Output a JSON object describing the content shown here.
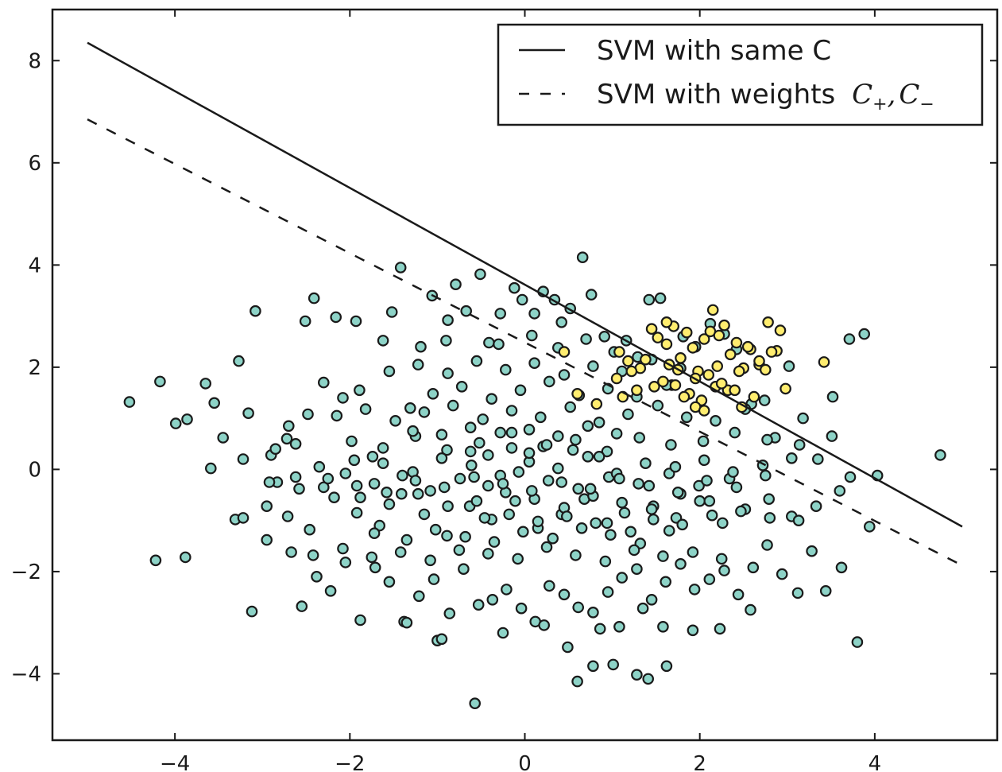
{
  "chart_data": {
    "type": "scatter",
    "title": "",
    "xlabel": "",
    "ylabel": "",
    "xlim": [
      -5.4,
      5.4
    ],
    "ylim": [
      -5.3,
      9.0
    ],
    "xticks": [
      -4,
      -2,
      0,
      2,
      4
    ],
    "yticks": [
      -4,
      -2,
      0,
      2,
      4,
      6,
      8
    ],
    "xtick_labels": [
      "−4",
      "−2",
      "0",
      "2",
      "4"
    ],
    "ytick_labels": [
      "−4",
      "−2",
      "0",
      "2",
      "4",
      "6",
      "8"
    ],
    "grid": false,
    "legend_position": "top-right",
    "colors": {
      "majority": "#8dd3c7",
      "minority": "#ffed6f",
      "marker_edge": "#1a1a1a",
      "line": "#1a1a1a"
    },
    "lines": [
      {
        "name": "SVM with same C",
        "style": "solid",
        "x": [
          -5.0,
          5.0
        ],
        "y": [
          8.35,
          -1.12
        ]
      },
      {
        "name": "SVM with weights",
        "math_name": "C+, C−",
        "style": "dashed",
        "x": [
          -5.0,
          5.0
        ],
        "y": [
          6.85,
          -1.88
        ]
      }
    ],
    "legend_math": {
      "c": "C",
      "plus": "+",
      "comma": ",",
      "minus": "−"
    },
    "series": [
      {
        "name": "",
        "color": "#8dd3c7",
        "x": [
          -4.52,
          -4.17,
          -3.86,
          -3.99,
          -3.65,
          -3.55,
          -3.45,
          -3.27,
          -3.22,
          -3.16,
          -3.08,
          -2.9,
          -2.85,
          -2.72,
          -2.62,
          -2.51,
          -2.48,
          -2.41,
          -2.3,
          -2.16,
          -2.08,
          -1.93,
          -1.89,
          -1.74,
          -1.62,
          -1.52,
          -1.42,
          -1.31,
          -1.19,
          -1.06,
          -0.88,
          -0.79,
          -0.67,
          -0.51,
          -0.41,
          -0.28,
          -0.12,
          -0.03,
          0.11,
          0.21,
          0.34,
          0.42,
          0.52,
          0.66,
          0.76,
          0.91,
          1.02,
          1.16,
          1.29,
          1.42,
          1.55,
          1.68,
          1.81,
          1.95,
          2.12,
          2.28,
          2.42,
          2.59,
          2.74,
          2.86,
          3.02,
          3.18,
          3.35,
          3.52,
          3.71,
          3.88,
          4.03,
          4.75,
          -4.22,
          -3.88,
          -3.59,
          -3.31,
          -3.12,
          -2.95,
          -2.83,
          -2.67,
          -2.55,
          -2.38,
          -2.22,
          -2.05,
          -1.88,
          -1.71,
          -1.55,
          -1.38,
          -1.21,
          -1.04,
          -0.86,
          -0.7,
          -0.53,
          -0.37,
          -0.21,
          -0.04,
          0.12,
          0.28,
          0.45,
          0.61,
          0.78,
          0.95,
          1.11,
          1.28,
          1.45,
          1.61,
          1.78,
          1.94,
          2.11,
          2.28,
          2.44,
          2.61,
          2.77,
          2.94,
          3.12,
          3.28,
          3.44,
          3.62,
          3.8,
          3.94,
          -3.22,
          -2.95,
          -2.71,
          -2.46,
          -2.18,
          -1.92,
          -1.66,
          -1.41,
          -1.15,
          -0.89,
          -0.63,
          -0.38,
          -0.11,
          0.15,
          0.42,
          0.68,
          0.94,
          1.21,
          1.47,
          1.73,
          2.0,
          2.26,
          2.52,
          2.79,
          3.05,
          3.33,
          3.6,
          3.72,
          -1.0,
          -0.57,
          0.6,
          0.78,
          1.01,
          1.28,
          1.41,
          1.62,
          -1.35,
          -0.95,
          -0.25,
          0.22,
          0.49,
          0.86,
          1.08,
          1.35,
          1.58,
          1.92,
          2.23,
          2.58,
          -2.62,
          -2.3,
          -2.05,
          -1.72,
          -1.4,
          -1.08,
          -0.74,
          -0.42,
          -0.07,
          0.27,
          0.61,
          0.96,
          1.3,
          1.65,
          1.99,
          2.34,
          -1.98,
          -1.62,
          -1.25,
          -0.89,
          -0.52,
          -0.15,
          0.21,
          0.58,
          0.94,
          1.31,
          1.67,
          2.04,
          2.4,
          2.77,
          3.14,
          3.51,
          -2.15,
          -1.82,
          -1.48,
          -1.15,
          -0.82,
          -0.48,
          -0.15,
          0.18,
          0.52,
          0.85,
          1.18,
          1.52,
          1.85,
          2.18,
          2.52,
          -1.05,
          -0.72,
          -0.38,
          -0.05,
          0.28,
          0.62,
          0.95,
          1.28,
          1.62,
          -2.7,
          -2.35,
          -1.95,
          -1.62,
          -1.28,
          -0.95,
          -0.61,
          -0.28,
          0.05,
          0.38,
          0.72,
          1.05,
          1.38,
          1.72,
          2.05,
          2.38,
          2.72,
          3.05,
          -1.55,
          -1.22,
          -0.88,
          -0.55,
          -0.22,
          0.11,
          0.45,
          0.78,
          1.11,
          1.45,
          1.78,
          -1.88,
          -1.55,
          -1.22,
          -0.88,
          -0.55,
          -0.22,
          0.11,
          0.45,
          0.78,
          1.11,
          1.45,
          1.78,
          2.11,
          -0.9,
          -0.3,
          0.08,
          0.38,
          0.7,
          -0.62,
          -0.42,
          -0.15,
          0.05,
          0.25,
          0.55,
          0.85,
          -1.72,
          -1.35,
          -1.02,
          -0.68,
          -0.35,
          -0.02,
          0.32,
          0.65,
          0.98,
          1.32,
          1.65,
          -2.42,
          -2.08,
          -1.75,
          -1.42,
          -1.08,
          -0.75,
          -0.42,
          -0.08,
          0.25,
          0.58,
          0.92,
          1.25,
          1.58,
          1.92,
          2.25,
          -2.92,
          -2.58,
          -2.25,
          -1.92,
          -1.58,
          -1.25,
          -0.92,
          -0.58,
          -0.25,
          0.08,
          0.42,
          0.75,
          1.08,
          1.42,
          1.75,
          2.08,
          2.42,
          2.75,
          -1.28,
          -0.95,
          -0.62,
          -0.28,
          0.05,
          0.38,
          0.72,
          1.05,
          -0.46,
          -0.18,
          0.15,
          0.48,
          0.81,
          1.14,
          1.47,
          1.8,
          2.14,
          2.47,
          2.8,
          3.13
        ],
        "y": [
          1.32,
          1.72,
          0.98,
          0.9,
          1.68,
          1.3,
          0.62,
          2.12,
          0.2,
          1.1,
          3.1,
          0.28,
          0.4,
          0.6,
          0.5,
          2.9,
          1.08,
          3.35,
          1.7,
          2.98,
          1.4,
          2.9,
          1.55,
          0.25,
          2.52,
          3.08,
          3.95,
          1.2,
          2.4,
          3.4,
          2.92,
          3.62,
          3.1,
          3.82,
          2.48,
          3.05,
          3.55,
          3.32,
          3.05,
          3.48,
          3.32,
          2.88,
          3.15,
          4.15,
          3.42,
          2.6,
          2.3,
          2.52,
          2.2,
          3.32,
          3.35,
          1.65,
          2.6,
          2.4,
          2.85,
          2.65,
          2.35,
          1.28,
          1.35,
          0.62,
          2.02,
          1.0,
          0.2,
          1.42,
          2.55,
          2.65,
          -0.12,
          0.28,
          -1.78,
          -1.72,
          0.02,
          -0.98,
          -2.78,
          -1.38,
          -0.25,
          -1.62,
          -2.68,
          -2.1,
          -2.38,
          -1.82,
          -2.95,
          -1.92,
          -2.2,
          -2.98,
          -2.48,
          -2.15,
          -2.82,
          -1.95,
          -2.65,
          -2.55,
          -2.35,
          -2.72,
          -2.98,
          -2.28,
          -2.45,
          -2.7,
          -2.8,
          -2.4,
          -2.12,
          -1.95,
          -2.55,
          -2.2,
          -1.85,
          -2.35,
          -2.15,
          -1.98,
          -2.45,
          -1.92,
          -1.48,
          -2.05,
          -2.42,
          -1.6,
          -2.38,
          -1.92,
          -3.38,
          -1.12,
          -0.95,
          -0.72,
          -0.92,
          -1.18,
          -0.55,
          -0.85,
          -1.1,
          -0.48,
          -0.88,
          -1.3,
          -0.72,
          -0.98,
          -0.62,
          -1.15,
          -0.88,
          -0.58,
          -1.05,
          -1.22,
          -0.72,
          -0.95,
          -0.62,
          -1.05,
          -0.78,
          -0.58,
          -0.92,
          -0.72,
          -0.42,
          -0.15,
          -3.35,
          -4.58,
          -4.15,
          -3.85,
          -3.82,
          -4.02,
          -4.1,
          -3.85,
          -3.0,
          -3.32,
          -3.2,
          -3.05,
          -3.48,
          -3.12,
          -3.08,
          -2.72,
          -3.08,
          -3.15,
          -3.12,
          -2.75,
          -0.15,
          -0.35,
          -0.08,
          -0.28,
          -0.12,
          -0.42,
          -0.18,
          -0.32,
          -0.05,
          -0.22,
          -0.38,
          -0.15,
          -0.28,
          -0.08,
          -0.32,
          -0.18,
          0.55,
          0.42,
          0.65,
          0.38,
          0.52,
          0.72,
          0.45,
          0.58,
          0.35,
          0.62,
          0.48,
          0.55,
          0.72,
          0.58,
          0.48,
          0.65,
          1.05,
          1.18,
          0.95,
          1.12,
          1.25,
          0.98,
          1.15,
          1.02,
          1.22,
          0.92,
          1.08,
          1.25,
          1.02,
          0.95,
          1.18,
          1.48,
          1.62,
          1.38,
          1.55,
          1.72,
          1.45,
          1.58,
          1.42,
          1.65,
          0.85,
          0.05,
          0.18,
          0.12,
          -0.05,
          0.22,
          0.08,
          -0.12,
          0.15,
          0.02,
          0.25,
          -0.08,
          0.12,
          0.05,
          0.18,
          -0.05,
          0.08,
          0.22,
          1.92,
          2.05,
          1.88,
          2.12,
          1.95,
          2.08,
          1.85,
          2.02,
          1.92,
          2.15,
          1.98,
          -0.55,
          -0.68,
          -0.48,
          -0.72,
          -0.62,
          -0.45,
          -0.58,
          -0.75,
          -0.52,
          -0.65,
          -0.78,
          -0.48,
          -0.62,
          2.52,
          2.45,
          2.62,
          2.38,
          2.55,
          0.35,
          0.28,
          0.42,
          0.32,
          0.48,
          0.38,
          0.25,
          -1.25,
          -1.38,
          -1.18,
          -1.32,
          -1.42,
          -1.22,
          -1.35,
          -1.15,
          -1.28,
          -1.45,
          -1.2,
          -1.68,
          -1.55,
          -1.72,
          -1.62,
          -1.78,
          -1.58,
          -1.65,
          -1.75,
          -1.52,
          -1.68,
          -1.8,
          -1.58,
          -1.7,
          -1.62,
          -1.75,
          -0.25,
          -0.38,
          -0.18,
          -0.32,
          -0.45,
          -0.22,
          -0.35,
          -0.15,
          -0.28,
          -0.42,
          -0.25,
          -0.38,
          -0.18,
          -0.32,
          -0.45,
          -0.22,
          -0.35,
          -0.12,
          0.75,
          0.68,
          0.82,
          0.72,
          0.78,
          0.65,
          0.85,
          0.7,
          -0.95,
          -0.88,
          -1.02,
          -0.92,
          -1.05,
          -0.85,
          -0.98,
          -1.08,
          -0.9,
          -0.82,
          -0.95,
          -1.0
        ]
      },
      {
        "name": "",
        "color": "#ffed6f",
        "x": [
          1.08,
          1.18,
          1.32,
          1.45,
          1.52,
          1.62,
          1.7,
          1.78,
          1.85,
          1.92,
          1.98,
          2.05,
          2.12,
          2.2,
          2.28,
          2.35,
          2.42,
          2.5,
          2.58,
          2.68,
          2.78,
          2.88,
          2.98,
          0.82,
          1.12,
          1.28,
          1.58,
          1.72,
          1.88,
          2.02,
          2.18,
          2.32,
          2.48,
          2.62,
          2.82,
          3.42,
          1.38,
          1.65,
          1.95,
          2.25,
          2.55,
          2.75,
          0.45,
          0.6,
          1.05,
          1.48,
          1.82,
          2.1,
          2.4,
          2.68,
          2.92,
          1.22,
          1.75,
          2.15,
          2.45,
          1.95,
          2.22,
          1.62,
          2.05
        ],
        "y": [
          2.3,
          2.12,
          1.98,
          2.75,
          2.58,
          2.45,
          2.8,
          2.18,
          2.68,
          2.38,
          1.92,
          2.55,
          2.7,
          2.02,
          2.82,
          2.25,
          2.48,
          1.98,
          2.35,
          2.05,
          2.88,
          2.32,
          1.58,
          1.28,
          1.42,
          1.55,
          1.72,
          1.65,
          1.48,
          1.35,
          1.62,
          1.55,
          1.22,
          1.42,
          2.3,
          2.1,
          2.15,
          2.05,
          1.78,
          1.68,
          2.4,
          1.95,
          2.3,
          1.48,
          1.78,
          1.62,
          1.42,
          1.85,
          1.55,
          2.12,
          2.72,
          1.92,
          1.95,
          3.12,
          1.92,
          1.22,
          2.62,
          2.88,
          1.15
        ]
      }
    ]
  }
}
